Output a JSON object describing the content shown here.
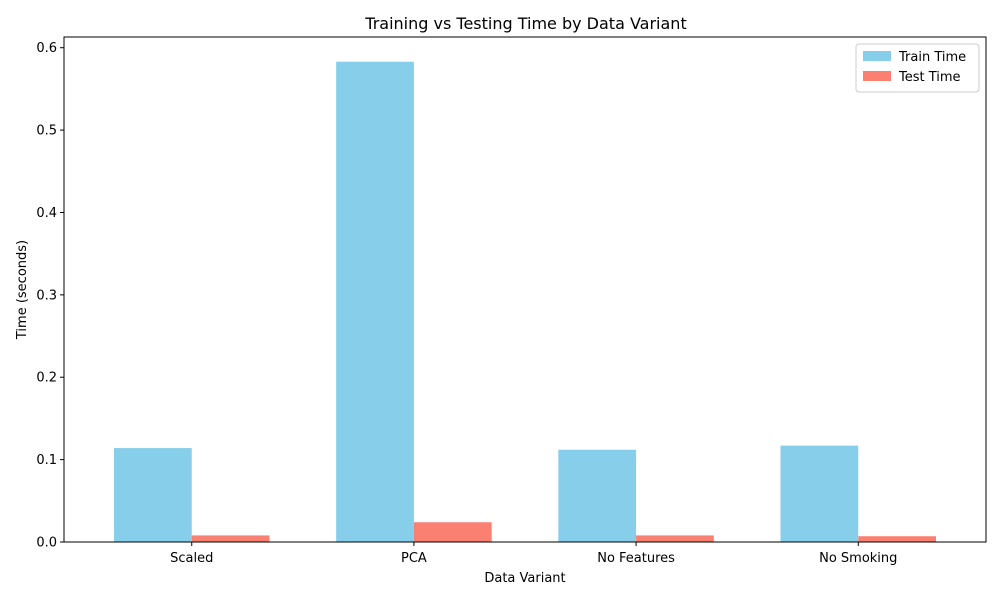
{
  "chart_data": {
    "type": "bar",
    "title": "Training vs Testing Time by Data Variant",
    "xlabel": "Data Variant",
    "ylabel": "Time (seconds)",
    "categories": [
      "Scaled",
      "PCA",
      "No Features",
      "No Smoking"
    ],
    "series": [
      {
        "name": "Train Time",
        "color": "#87CEEB",
        "values": [
          0.114,
          0.583,
          0.112,
          0.117
        ]
      },
      {
        "name": "Test Time",
        "color": "#FA8072",
        "values": [
          0.008,
          0.024,
          0.008,
          0.007
        ]
      }
    ],
    "ylim": [
      0,
      0.613
    ],
    "yticks": [
      "0.0",
      "0.1",
      "0.2",
      "0.3",
      "0.4",
      "0.5",
      "0.6"
    ],
    "ytick_values": [
      0,
      0.1,
      0.2,
      0.3,
      0.4,
      0.5,
      0.6
    ],
    "legend_position": "top-right",
    "grid": false
  }
}
